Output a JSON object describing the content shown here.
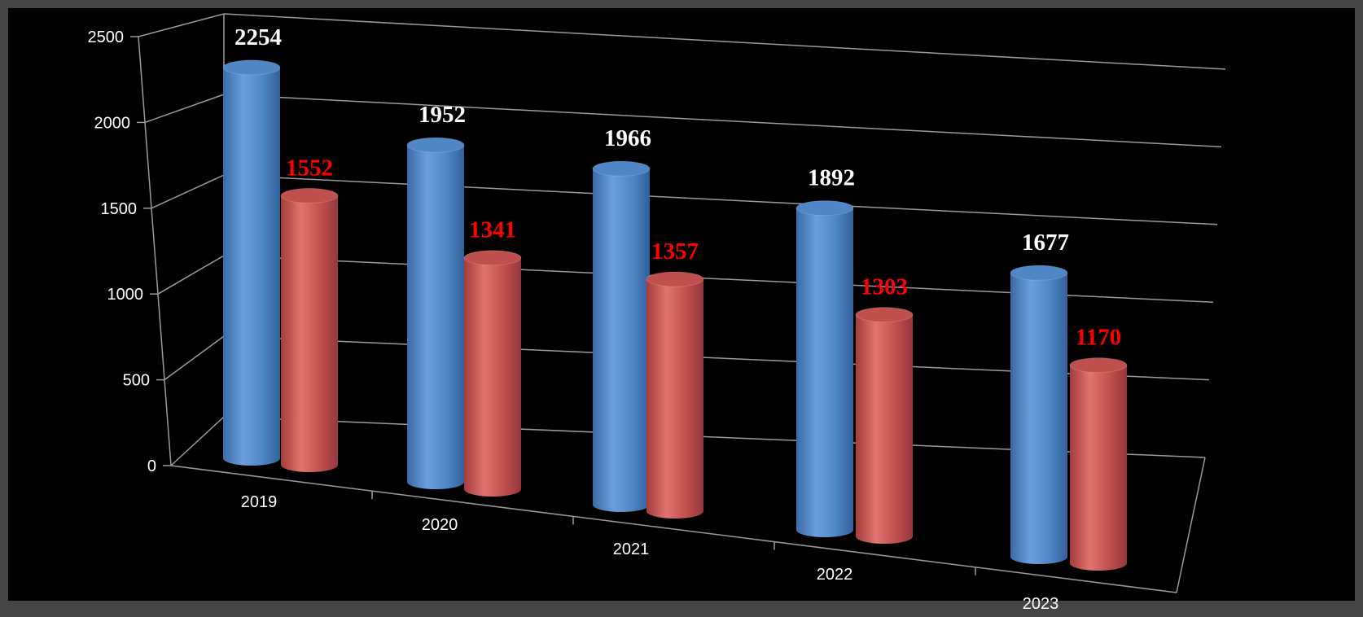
{
  "chart_data": {
    "type": "bar",
    "style": "3d-cylinder",
    "categories": [
      "2019",
      "2020",
      "2021",
      "2022",
      "2023"
    ],
    "series": [
      {
        "values": [
          2254,
          1952,
          1966,
          1892,
          1677
        ],
        "color": "#4f86c6",
        "label_color": "#ffffff"
      },
      {
        "values": [
          1552,
          1341,
          1357,
          1303,
          1170
        ],
        "color": "#c0504d",
        "label_color": "#ff0000"
      }
    ],
    "yticks": [
      "0",
      "500",
      "1000",
      "1500",
      "2000",
      "2500"
    ],
    "ylim": [
      0,
      2500
    ],
    "grid": true,
    "legend": "none",
    "background": "#000000",
    "frame_color": "#454545"
  }
}
